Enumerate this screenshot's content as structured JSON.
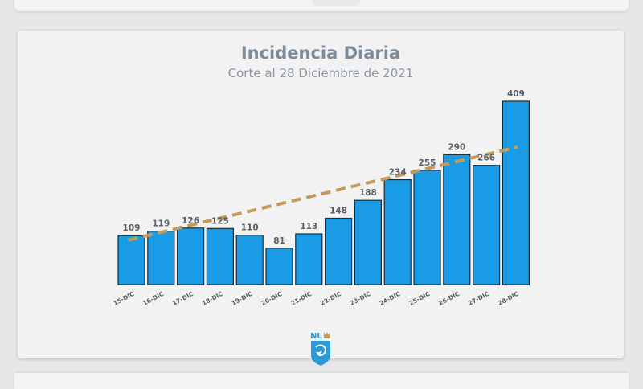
{
  "chart_data": {
    "type": "bar",
    "title": "Incidencia Diaria",
    "subtitle": "Corte al 28 Diciembre de 2021",
    "categories": [
      "15-DIC",
      "16-DIC",
      "17-DIC",
      "18-DIC",
      "19-DIC",
      "20-DIC",
      "21-DIC",
      "22-DIC",
      "23-DIC",
      "24-DIC",
      "25-DIC",
      "26-DIC",
      "27-DIC",
      "28-DIC"
    ],
    "values": [
      109,
      119,
      126,
      125,
      110,
      81,
      113,
      148,
      188,
      234,
      255,
      290,
      266,
      409
    ],
    "ylim": [
      0,
      409
    ],
    "grid": false,
    "legend": "none",
    "trendline": {
      "type": "linear",
      "style": "dashed",
      "start": 99,
      "end": 307
    },
    "colors": {
      "bar": "#1a9be6",
      "bar_outline": "#1f2a33",
      "trend": "#c29b5c",
      "label": "#5a5f66",
      "title": "#7b8b9a"
    }
  },
  "logo": {
    "text": "NL",
    "icon": "nuevo-leon-shield-logo"
  }
}
